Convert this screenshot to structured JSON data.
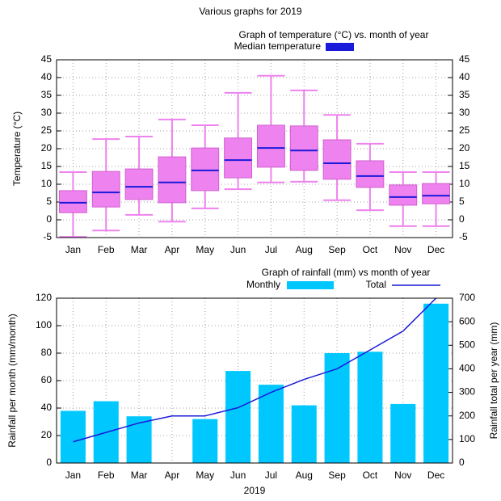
{
  "title": "Various graphs for 2019",
  "chart_data": [
    {
      "type": "box",
      "title": "Graph of temperature (°C) vs. month of year",
      "ylabel": "Temperature (°C)",
      "categories": [
        "Jan",
        "Feb",
        "Mar",
        "Apr",
        "May",
        "Jun",
        "Jul",
        "Aug",
        "Sep",
        "Oct",
        "Nov",
        "Dec"
      ],
      "series": [
        {
          "name": "Median temperature",
          "color": "#1a1adb",
          "box_color": "#ee82ee",
          "min": [
            -4.8,
            -3,
            1.4,
            -0.5,
            3.2,
            8.6,
            10.5,
            10.7,
            5.5,
            2.7,
            -1.8,
            -1.8
          ],
          "q1": [
            2,
            3.6,
            5.7,
            4.8,
            8.2,
            11.8,
            14.8,
            13.9,
            11.4,
            9.1,
            4.1,
            4.5
          ],
          "median": [
            4.8,
            7.7,
            9.3,
            10.5,
            13.9,
            16.8,
            20.2,
            19.5,
            15.9,
            12.3,
            6.4,
            6.8
          ],
          "q3": [
            8.2,
            13.6,
            14.3,
            17.7,
            20.2,
            23,
            26.6,
            26.4,
            22.5,
            16.6,
            9.8,
            10.2
          ],
          "max": [
            13.4,
            22.7,
            23.4,
            28.2,
            26.6,
            35.7,
            40.5,
            36.4,
            29.5,
            21.4,
            13.4,
            13.4
          ]
        }
      ],
      "ylim": [
        -5,
        45
      ],
      "yticks": [
        -5,
        0,
        5,
        10,
        15,
        20,
        25,
        30,
        35,
        40,
        45
      ],
      "y2lim": [
        -5,
        45
      ],
      "y2ticks": [
        -5,
        0,
        5,
        10,
        15,
        20,
        25,
        30,
        35,
        40,
        45
      ],
      "grid": true
    },
    {
      "type": "bar-line",
      "title": "Graph of rainfall (mm) vs month of year",
      "xlabel": "2019",
      "ylabel": "Rainfall per month (mm/month)",
      "y2label": "Rainfall total per year (mm)",
      "categories": [
        "Jan",
        "Feb",
        "Mar",
        "Apr",
        "May",
        "Jun",
        "Jul",
        "Aug",
        "Sep",
        "Oct",
        "Nov",
        "Dec"
      ],
      "series": [
        {
          "name": "Monthly",
          "color": "#00c8ff",
          "values": [
            38,
            45,
            34,
            0,
            32,
            67,
            57,
            42,
            80,
            81,
            43,
            116
          ]
        },
        {
          "name": "Total",
          "color": "#1a1adb",
          "axis": "y2",
          "values": [
            90,
            130,
            170,
            200,
            200,
            235,
            300,
            355,
            400,
            480,
            560,
            700
          ]
        }
      ],
      "ylim": [
        0,
        120
      ],
      "yticks": [
        0,
        20,
        40,
        60,
        80,
        100,
        120
      ],
      "y2lim": [
        0,
        700
      ],
      "y2ticks": [
        0,
        100,
        200,
        300,
        400,
        500,
        600,
        700
      ],
      "grid": true
    }
  ]
}
